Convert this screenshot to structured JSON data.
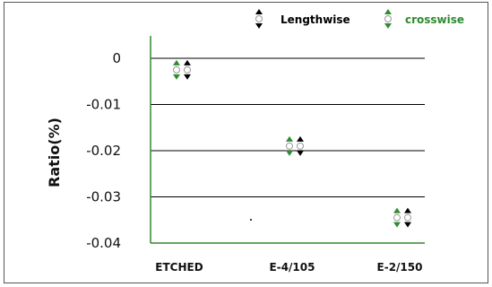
{
  "chart_data": {
    "type": "scatter",
    "title": "",
    "xlabel": "",
    "ylabel": "Ratio(%)",
    "categories": [
      "ETCHED",
      "E-4/105",
      "E-2/150"
    ],
    "ylim": [
      -0.04,
      0
    ],
    "yticks": [
      "0",
      "-0.01",
      "-0.02",
      "-0.03",
      "-0.04"
    ],
    "ytick_values": [
      0,
      -0.01,
      -0.02,
      -0.03,
      -0.04
    ],
    "grid": true,
    "legend_position": "top-right",
    "series": [
      {
        "name": "Lengthwise",
        "color": "#000000",
        "values": [
          -0.0025,
          -0.019,
          -0.0345
        ]
      },
      {
        "name": "crosswise",
        "color": "#2e8b2e",
        "values": [
          -0.0025,
          -0.019,
          -0.0345
        ]
      }
    ],
    "colors": {
      "axis": "#2e8b2e",
      "grid": "#000000",
      "legend_crosswise_text": "#2e8b2e"
    }
  }
}
